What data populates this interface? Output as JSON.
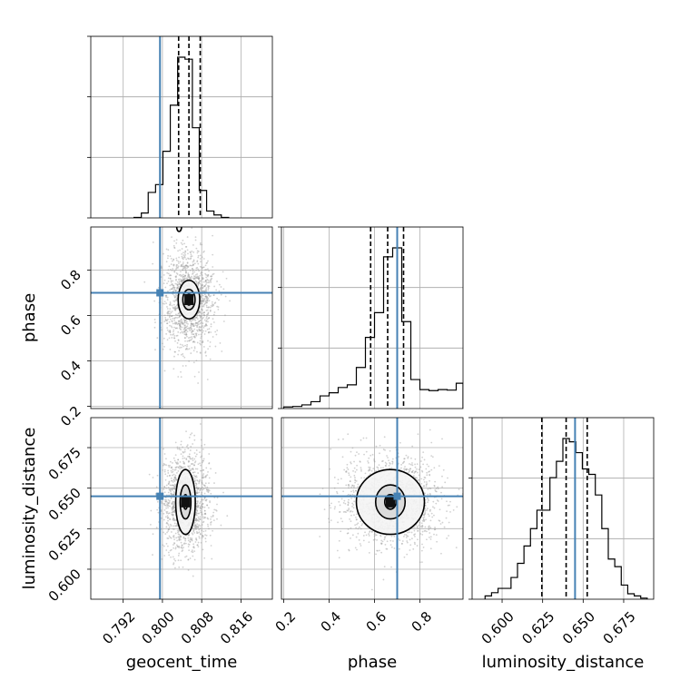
{
  "chart_data": {
    "type": "corner",
    "parameters": [
      "geocent_time",
      "phase",
      "luminosity_distance"
    ],
    "truths": {
      "geocent_time": 0.7995,
      "phase": 0.7,
      "luminosity_distance": 0.645
    },
    "quantiles": {
      "geocent_time": [
        0.8033,
        0.8054,
        0.8077
      ],
      "phase": [
        0.583,
        0.658,
        0.728
      ],
      "luminosity_distance": [
        0.6245,
        0.6395,
        0.6525
      ]
    },
    "ranges": {
      "geocent_time": [
        0.7854,
        0.8224
      ],
      "phase": [
        0.19,
        0.99
      ],
      "luminosity_distance": [
        0.5815,
        0.6935
      ]
    },
    "ticks": {
      "geocent_time": [
        "0.792",
        "0.800",
        "0.808",
        "0.816"
      ],
      "phase": [
        "0.2",
        "0.4",
        "0.6",
        "0.8"
      ],
      "luminosity_distance": [
        "0.600",
        "0.625",
        "0.650",
        "0.675"
      ]
    },
    "histograms": {
      "geocent_time": {
        "edges": [
          0.7942,
          0.7957,
          0.7971,
          0.7986,
          0.8001,
          0.8016,
          0.8031,
          0.8046,
          0.8061,
          0.8075,
          0.809,
          0.8105,
          0.812,
          0.8135
        ],
        "counts": [
          0.05,
          0.5,
          2.6,
          3.4,
          6.8,
          11.5,
          16.4,
          16.2,
          9.2,
          2.8,
          0.7,
          0.3,
          0.05
        ]
      },
      "phase": {
        "edges": [
          0.2,
          0.24,
          0.28,
          0.32,
          0.36,
          0.4,
          0.44,
          0.48,
          0.52,
          0.56,
          0.6,
          0.64,
          0.68,
          0.72,
          0.76,
          0.8,
          0.84,
          0.88,
          0.92,
          0.96,
          0.99
        ],
        "counts": [
          0.3,
          0.4,
          0.7,
          1.3,
          2.4,
          3.0,
          4.0,
          4.5,
          7.8,
          13.5,
          18.2,
          28.8,
          30.5,
          16.5,
          5.5,
          3.6,
          3.4,
          3.6,
          3.5,
          4.8
        ]
      },
      "luminosity_distance": {
        "edges": [
          0.5895,
          0.5935,
          0.5975,
          0.6015,
          0.6055,
          0.6095,
          0.6135,
          0.6175,
          0.6215,
          0.6255,
          0.6295,
          0.6335,
          0.6375,
          0.6415,
          0.6455,
          0.6495,
          0.6535,
          0.6575,
          0.6615,
          0.6655,
          0.6695,
          0.6735,
          0.6775,
          0.6815,
          0.6855,
          0.6895
        ],
        "counts": [
          0.3,
          0.6,
          1.0,
          1.0,
          2.0,
          3.3,
          4.9,
          6.5,
          8.2,
          8.2,
          11.2,
          12.7,
          14.8,
          14.5,
          13.5,
          12.0,
          11.5,
          9.6,
          6.5,
          3.7,
          3.0,
          1.3,
          0.5,
          0.3,
          0.1
        ]
      }
    },
    "pairs": [
      {
        "x": "geocent_time",
        "y": "phase",
        "mean": [
          0.8054,
          0.67
        ],
        "sd": [
          0.0026,
          0.11
        ],
        "levels": [
          {
            "sd": [
              0.00055,
              0.024
            ],
            "sdShape": 1
          },
          {
            "sd": [
              0.00125,
              0.045
            ]
          },
          {
            "sd": [
              0.0022,
              0.085
            ]
          }
        ],
        "extra_contour": {
          "x": 0.8034,
          "y": 0.99,
          "rx": 0.0005,
          "ry": 0.02
        }
      },
      {
        "x": "geocent_time",
        "y": "luminosity_distance",
        "mean": [
          0.8047,
          0.6415
        ],
        "sd": [
          0.0024,
          0.0145
        ],
        "levels": [
          {
            "sd": [
              0.00045,
              0.0045
            ]
          },
          {
            "sd": [
              0.0011,
              0.0105
            ]
          },
          {
            "sd": [
              0.002,
              0.02
            ]
          }
        ]
      },
      {
        "x": "phase",
        "y": "luminosity_distance",
        "mean": [
          0.67,
          0.6415
        ],
        "sd": [
          0.11,
          0.0145
        ],
        "levels": [
          {
            "sd": [
              0.025,
              0.0045
            ]
          },
          {
            "sd": [
              0.065,
              0.0105
            ]
          },
          {
            "sd": [
              0.15,
              0.02
            ]
          }
        ]
      }
    ],
    "xlabels": [
      "geocent_time",
      "phase",
      "luminosity_distance"
    ],
    "ylabels": [
      "",
      "phase",
      "luminosity_distance"
    ],
    "truth_color": "#4682b4",
    "line_color": "#000000",
    "grid": true
  }
}
